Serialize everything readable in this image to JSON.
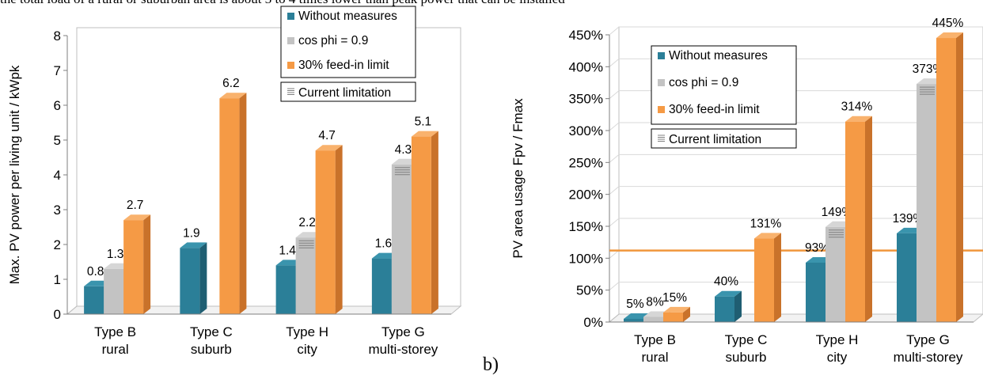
{
  "header_text": "the total load of a rural or suburban area is about 3 to 4 times lower than peak power that can be installed",
  "panel_label": "b)",
  "colors": {
    "without_front": "#2b7f98",
    "without_side": "#1f5e72",
    "without_top": "#3a94ad",
    "cos_front": "#c3c3c3",
    "cos_side": "#9c9c9c",
    "cos_top": "#d6d6d6",
    "feed_front": "#f59a45",
    "feed_side": "#c9722a",
    "feed_top": "#f9b26d",
    "refline": "#f0963c",
    "grid": "#d9d9d9",
    "axis": "#7f7f7f"
  },
  "chart_data": [
    {
      "type": "bar",
      "ylabel": "Max. PV power per living unit / kWpk",
      "ylim": [
        0,
        8
      ],
      "yticks": [
        "0",
        "1",
        "2",
        "3",
        "4",
        "5",
        "6",
        "7",
        "8"
      ],
      "categories": [
        [
          "Type B",
          "rural"
        ],
        [
          "Type C",
          "suburb"
        ],
        [
          "Type H",
          "city"
        ],
        [
          "Type G",
          "multi-storey"
        ]
      ],
      "series": [
        {
          "name": "Without measures",
          "values": [
            0.8,
            1.9,
            1.4,
            1.6
          ],
          "labels": [
            "0.8",
            "1.9",
            "1.4",
            "1.6"
          ]
        },
        {
          "name": "cos phi = 0.9",
          "values": [
            1.3,
            null,
            2.2,
            4.3
          ],
          "labels": [
            "1.3",
            "",
            "2.2",
            "4.3"
          ],
          "current_limitation": [
            false,
            false,
            true,
            true
          ]
        },
        {
          "name": "30% feed-in limit",
          "values": [
            2.7,
            6.2,
            4.7,
            5.1
          ],
          "labels": [
            "2.7",
            "6.2",
            "4.7",
            "5.1"
          ]
        }
      ],
      "legend": [
        "Without measures",
        "cos phi = 0.9",
        "30% feed-in limit",
        "Current limitation"
      ],
      "legend_position": "top-center",
      "grid": false
    },
    {
      "type": "bar",
      "ylabel": "PV area usage Fpv / Fmax",
      "ylim": [
        0,
        450
      ],
      "yticks": [
        "0%",
        "50%",
        "100%",
        "150%",
        "200%",
        "250%",
        "300%",
        "350%",
        "400%",
        "450%"
      ],
      "categories": [
        [
          "Type B",
          "rural"
        ],
        [
          "Type C",
          "suburb"
        ],
        [
          "Type H",
          "city"
        ],
        [
          "Type G",
          "multi-storey"
        ]
      ],
      "series": [
        {
          "name": "Without measures",
          "values": [
            5,
            40,
            93,
            139
          ],
          "labels": [
            "5%",
            "40%",
            "93%",
            "139%"
          ]
        },
        {
          "name": "cos phi = 0.9",
          "values": [
            8,
            null,
            149,
            373
          ],
          "labels": [
            "8%",
            "",
            "149%",
            "373%"
          ],
          "current_limitation": [
            false,
            false,
            true,
            true
          ]
        },
        {
          "name": "30% feed-in limit",
          "values": [
            15,
            131,
            314,
            445
          ],
          "labels": [
            "15%",
            "131%",
            "314%",
            "445%"
          ]
        }
      ],
      "reference_line": 112,
      "legend": [
        "Without measures",
        "cos phi = 0.9",
        "30% feed-in limit",
        "Current limitation"
      ],
      "legend_position": "top-left",
      "grid": true
    }
  ]
}
